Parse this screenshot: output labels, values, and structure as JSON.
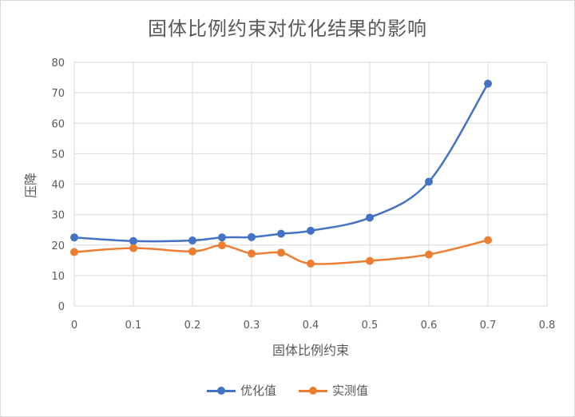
{
  "chart_data": {
    "type": "line",
    "title": "固体比例约束对优化结果的影响",
    "xlabel": "固体比例约束",
    "ylabel": "压降",
    "xlim": [
      0,
      0.8
    ],
    "ylim": [
      0,
      80
    ],
    "x_ticks": [
      "0",
      "0.1",
      "0.2",
      "0.3",
      "0.4",
      "0.5",
      "0.6",
      "0.7",
      "0.8"
    ],
    "y_ticks": [
      "0",
      "10",
      "20",
      "30",
      "40",
      "50",
      "60",
      "70",
      "80"
    ],
    "grid": true,
    "legend_position": "bottom",
    "series": [
      {
        "name": "优化值",
        "color": "#4472C4",
        "x": [
          0,
          0.1,
          0.2,
          0.25,
          0.3,
          0.35,
          0.4,
          0.5,
          0.6,
          0.7
        ],
        "y": [
          22.5,
          21.3,
          21.5,
          22.5,
          22.6,
          23.7,
          24.7,
          29.0,
          40.8,
          73.0
        ]
      },
      {
        "name": "实测值",
        "color": "#ED7D31",
        "x": [
          0,
          0.1,
          0.2,
          0.25,
          0.3,
          0.35,
          0.4,
          0.5,
          0.6,
          0.7
        ],
        "y": [
          17.7,
          19.0,
          17.9,
          19.9,
          17.2,
          17.5,
          13.9,
          14.8,
          16.9,
          21.6
        ]
      }
    ]
  }
}
